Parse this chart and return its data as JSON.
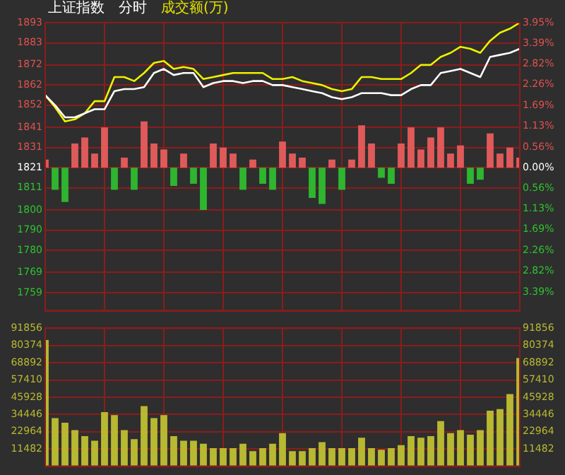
{
  "chart_data": [
    {
      "type": "line",
      "title": "上证指数",
      "subtitle": "分时",
      "annotations": [
        "成交额(万)"
      ],
      "categories": [
        null,
        null,
        null,
        null,
        null,
        null,
        null,
        null,
        null,
        null,
        null,
        null,
        null,
        null,
        null,
        null,
        null,
        null,
        null,
        null,
        null,
        null,
        null,
        null,
        null,
        null,
        null,
        null,
        null,
        null,
        null,
        null,
        null,
        null,
        null,
        null,
        null,
        null,
        null,
        null,
        null,
        null,
        null,
        null,
        null,
        null,
        null,
        null,
        null
      ],
      "ylim": [
        1750,
        1893
      ],
      "yticks": [
        1893,
        1883,
        1872,
        1862,
        1852,
        1841,
        1831,
        1821,
        1811,
        1800,
        1790,
        1780,
        1769,
        1759
      ],
      "y2lim": [
        -3.9,
        3.95
      ],
      "y2ticks": [
        {
          "value": 3.95,
          "label": "3.95%"
        },
        {
          "value": 3.39,
          "label": "3.39%"
        },
        {
          "value": 2.82,
          "label": "2.82%"
        },
        {
          "value": 2.26,
          "label": "2.26%"
        },
        {
          "value": 1.69,
          "label": "1.69%"
        },
        {
          "value": 1.13,
          "label": "1.13%"
        },
        {
          "value": 0.56,
          "label": "0.56%"
        },
        {
          "value": 0,
          "label": "0.00%"
        },
        {
          "value": -0.56,
          "label": "0.56%"
        },
        {
          "value": -1.13,
          "label": "1.13%"
        },
        {
          "value": -1.69,
          "label": "1.69%"
        },
        {
          "value": -2.26,
          "label": "2.26%"
        },
        {
          "value": -2.82,
          "label": "2.82%"
        },
        {
          "value": -3.39,
          "label": "3.39%"
        }
      ],
      "grid": true,
      "legend": false,
      "marker": "none",
      "tick_labels": "y",
      "series": [
        {
          "type": "bar",
          "base": [
            1821,
            1821,
            1821,
            1821,
            1821,
            1821,
            1821,
            1821,
            1821,
            1821,
            1821,
            1821,
            1821,
            1821,
            1821,
            1821,
            1821,
            1821,
            1821,
            1821,
            1821,
            1821,
            1821,
            1821,
            1821,
            1821,
            1821,
            1821,
            1821,
            1821,
            1821,
            1821,
            1821,
            1821,
            1821,
            1821,
            1821,
            1821,
            1821,
            1821,
            1821,
            1821,
            1821,
            1821,
            1821,
            1821,
            1821,
            1821,
            1821
          ],
          "colors": [
            "#e05a5a",
            "#2fb52f",
            "#2fb52f",
            "#e05a5a",
            "#e05a5a",
            "#e05a5a",
            "#e05a5a",
            "#2fb52f",
            "#e05a5a",
            "#2fb52f",
            "#e05a5a",
            "#e05a5a",
            "#e05a5a",
            "#2fb52f",
            "#e05a5a",
            "#2fb52f",
            "#2fb52f",
            "#e05a5a",
            "#e05a5a",
            "#e05a5a",
            "#2fb52f",
            "#e05a5a",
            "#2fb52f",
            "#2fb52f",
            "#e05a5a",
            "#e05a5a",
            "#e05a5a",
            "#2fb52f",
            "#2fb52f",
            "#e05a5a",
            "#2fb52f",
            "#e05a5a",
            "#e05a5a",
            "#e05a5a",
            "#2fb52f",
            "#2fb52f",
            "#e05a5a",
            "#e05a5a",
            "#e05a5a",
            "#e05a5a",
            "#e05a5a",
            "#e05a5a",
            "#e05a5a",
            "#2fb52f",
            "#2fb52f",
            "#e05a5a",
            "#e05a5a",
            "#e05a5a",
            "#e05a5a"
          ],
          "values": [
            4,
            -11,
            -17,
            12,
            15,
            7,
            20,
            -11,
            5,
            -11,
            23,
            12,
            9,
            -9,
            7,
            -8,
            -21,
            12,
            10,
            7,
            -11,
            4,
            -8,
            -11,
            13,
            7,
            5,
            -15,
            -18,
            4,
            -11,
            4,
            21,
            12,
            -5,
            -8,
            12,
            20,
            9,
            15,
            20,
            7,
            11,
            -8,
            -6,
            17,
            7,
            10,
            5
          ]
        },
        {
          "color": "#ffffff",
          "values": [
            1857,
            1852,
            1846,
            1846,
            1848,
            1850,
            1850,
            1859,
            1860,
            1860,
            1861,
            1868,
            1870,
            1867,
            1868,
            1868,
            1861,
            1863,
            1864,
            1864,
            1863,
            1864,
            1864,
            1862,
            1862,
            1861,
            1860,
            1859,
            1858,
            1856,
            1855,
            1856,
            1858,
            1858,
            1858,
            1857,
            1857,
            1860,
            1862,
            1862,
            1868,
            1869,
            1870,
            1868,
            1866,
            1876,
            1877,
            1878,
            1880
          ]
        },
        {
          "color": "#f0f000",
          "values": [
            1857,
            1851,
            1844,
            1845,
            1848,
            1854,
            1854,
            1866,
            1866,
            1864,
            1868,
            1873,
            1874,
            1870,
            1871,
            1870,
            1865,
            1866,
            1867,
            1868,
            1868,
            1868,
            1868,
            1865,
            1865,
            1866,
            1864,
            1863,
            1862,
            1860,
            1859,
            1860,
            1866,
            1866,
            1865,
            1865,
            1865,
            1868,
            1872,
            1872,
            1876,
            1878,
            1881,
            1880,
            1878,
            1884,
            1888,
            1890,
            1893
          ]
        }
      ]
    },
    {
      "type": "bar",
      "categories": [
        null,
        null,
        null,
        null,
        null,
        null,
        null,
        null,
        null,
        null,
        null,
        null,
        null,
        null,
        null,
        null,
        null,
        null,
        null,
        null,
        null,
        null,
        null,
        null,
        null,
        null,
        null,
        null,
        null,
        null,
        null,
        null,
        null,
        null,
        null,
        null,
        null,
        null,
        null,
        null,
        null,
        null,
        null,
        null,
        null,
        null,
        null,
        null,
        null
      ],
      "color": "#b8b832",
      "values": [
        84000,
        32000,
        29000,
        24000,
        20000,
        17000,
        36000,
        34000,
        24000,
        18000,
        40000,
        32000,
        34000,
        20000,
        17000,
        17000,
        15000,
        12000,
        12000,
        12000,
        15000,
        10000,
        12000,
        15000,
        22000,
        10000,
        10000,
        12000,
        16000,
        12000,
        12000,
        12000,
        19000,
        12000,
        11000,
        12000,
        14000,
        20000,
        19000,
        20000,
        30000,
        22000,
        24000,
        21000,
        24000,
        37000,
        38000,
        48000,
        72000
      ],
      "ylim": [
        0,
        91856
      ],
      "yticks": [
        11482,
        22964,
        34446,
        45928,
        57410,
        68892,
        80374,
        91856
      ],
      "y2lim": [
        0,
        91856
      ],
      "y2ticks": [
        11482,
        22964,
        34446,
        45928,
        57410,
        68892,
        80374,
        91856
      ],
      "grid": true,
      "legend": false,
      "tick_labels": "y"
    }
  ]
}
